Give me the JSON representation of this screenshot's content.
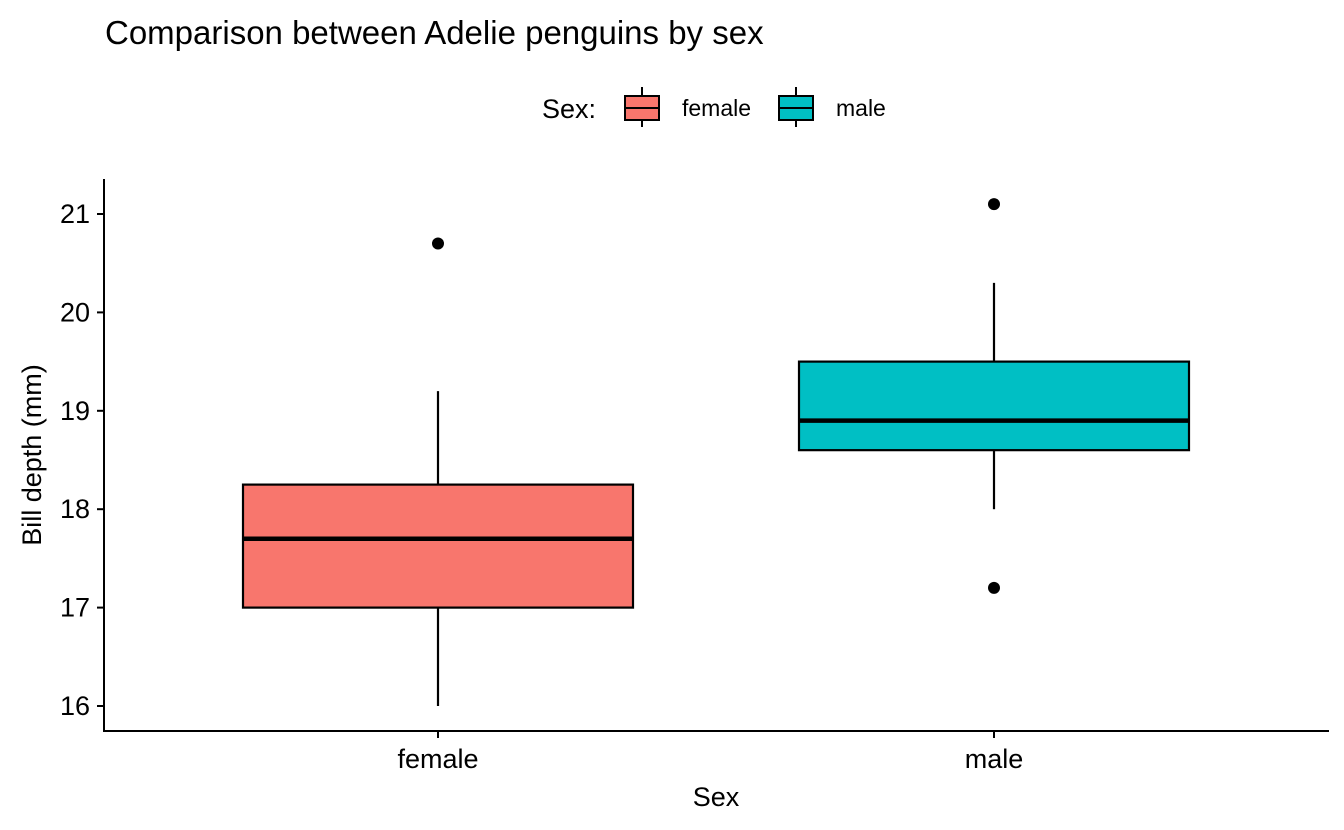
{
  "chart_data": {
    "type": "boxplot",
    "title": "Comparison between Adelie penguins by sex",
    "xlabel": "Sex",
    "ylabel": "Bill depth (mm)",
    "ylim": [
      15.75,
      21.35
    ],
    "yticks": [
      16,
      17,
      18,
      19,
      20,
      21
    ],
    "ytick_labels": [
      "16",
      "17",
      "18",
      "19",
      "20",
      "21"
    ],
    "grid": false,
    "legend": {
      "title": "Sex:",
      "position": "top",
      "entries": [
        "female",
        "male"
      ]
    },
    "categories": [
      "female",
      "male"
    ],
    "series": [
      {
        "name": "female",
        "color": "#F8766D",
        "whisker_low": 16.0,
        "q1": 17.0,
        "median": 17.7,
        "q3": 18.25,
        "whisker_high": 19.2,
        "outliers": [
          20.7
        ]
      },
      {
        "name": "male",
        "color": "#00BFC4",
        "whisker_low": 18.0,
        "q1": 18.6,
        "median": 18.9,
        "q3": 19.5,
        "whisker_high": 20.3,
        "outliers": [
          21.1,
          17.2
        ]
      }
    ]
  }
}
